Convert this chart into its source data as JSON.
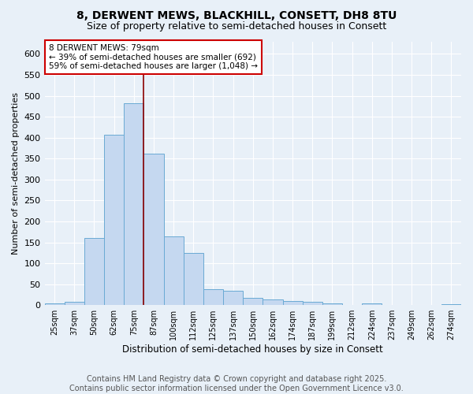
{
  "title": "8, DERWENT MEWS, BLACKHILL, CONSETT, DH8 8TU",
  "subtitle": "Size of property relative to semi-detached houses in Consett",
  "xlabel": "Distribution of semi-detached houses by size in Consett",
  "ylabel": "Number of semi-detached properties",
  "bar_color": "#c5d8f0",
  "bar_edge_color": "#6aaad4",
  "background_color": "#e8f0f8",
  "grid_color": "white",
  "annotation_text": "8 DERWENT MEWS: 79sqm\n← 39% of semi-detached houses are smaller (692)\n59% of semi-detached houses are larger (1,048) →",
  "annotation_box_color": "white",
  "annotation_border_color": "#cc0000",
  "vline_color": "#8b0000",
  "categories": [
    "25sqm",
    "37sqm",
    "50sqm",
    "62sqm",
    "75sqm",
    "87sqm",
    "100sqm",
    "112sqm",
    "125sqm",
    "137sqm",
    "150sqm",
    "162sqm",
    "174sqm",
    "187sqm",
    "199sqm",
    "212sqm",
    "224sqm",
    "237sqm",
    "249sqm",
    "262sqm",
    "274sqm"
  ],
  "values": [
    5,
    7,
    160,
    407,
    483,
    362,
    165,
    124,
    38,
    35,
    18,
    14,
    10,
    8,
    4,
    1,
    5,
    1,
    1,
    1,
    3
  ],
  "vline_bar_index": 4,
  "ylim": [
    0,
    630
  ],
  "yticks": [
    0,
    50,
    100,
    150,
    200,
    250,
    300,
    350,
    400,
    450,
    500,
    550,
    600
  ],
  "footer_text": "Contains HM Land Registry data © Crown copyright and database right 2025.\nContains public sector information licensed under the Open Government Licence v3.0.",
  "title_fontsize": 10,
  "subtitle_fontsize": 9,
  "footer_fontsize": 7
}
